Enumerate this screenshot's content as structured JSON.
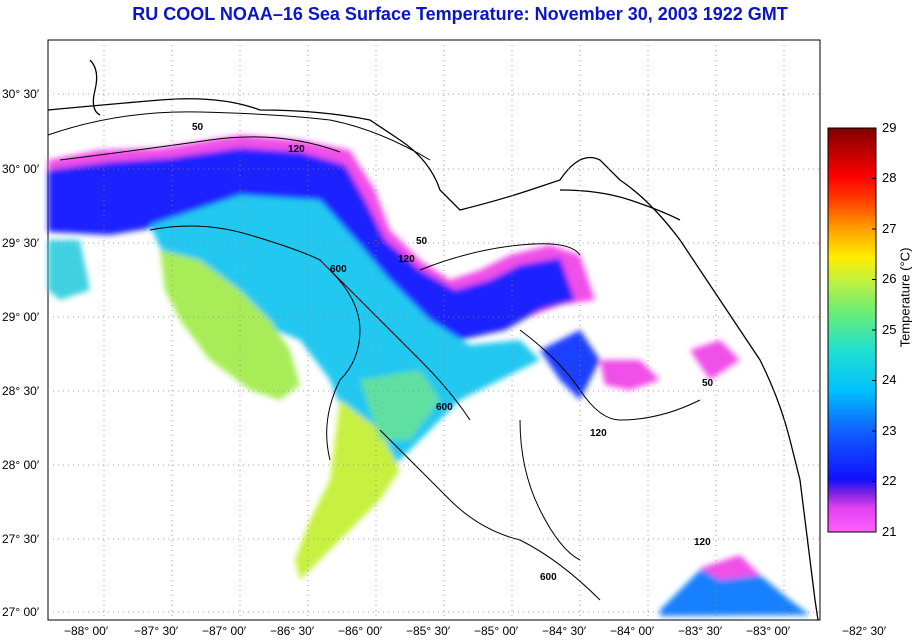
{
  "title": "RU COOL  NOAA–16  Sea Surface Temperature:  November 30, 2003 1922 GMT",
  "chart_data": {
    "type": "heatmap",
    "title": "RU COOL  NOAA–16  Sea Surface Temperature:  November 30, 2003 1922 GMT",
    "latitude_labels": [
      "30° 30′",
      "30° 00′",
      "29° 30′",
      "29° 00′",
      "28° 30′",
      "28° 00′",
      "27° 30′",
      "27° 00′"
    ],
    "longitude_labels": [
      "−88° 00′",
      "−87° 30′",
      "−87° 00′",
      "−86° 30′",
      "−86° 00′",
      "−85° 30′",
      "−85° 00′",
      "−84° 30′",
      "−84° 00′",
      "−83° 30′",
      "−83° 00′",
      "−82° 30′"
    ],
    "lat_range": [
      26.9,
      30.85
    ],
    "lon_range": [
      -88.2,
      -82.5
    ],
    "grid": true,
    "bathymetry_contours": [
      "50",
      "120",
      "600"
    ],
    "colorbar": {
      "label": "Temperature (°C)",
      "range": [
        21,
        29
      ],
      "ticks": [
        "29",
        "28",
        "27",
        "26",
        "25",
        "24",
        "23",
        "22",
        "21"
      ]
    }
  },
  "colors": {
    "title": "#0a14c8",
    "land": "#ffffff",
    "grid": "#888888"
  }
}
